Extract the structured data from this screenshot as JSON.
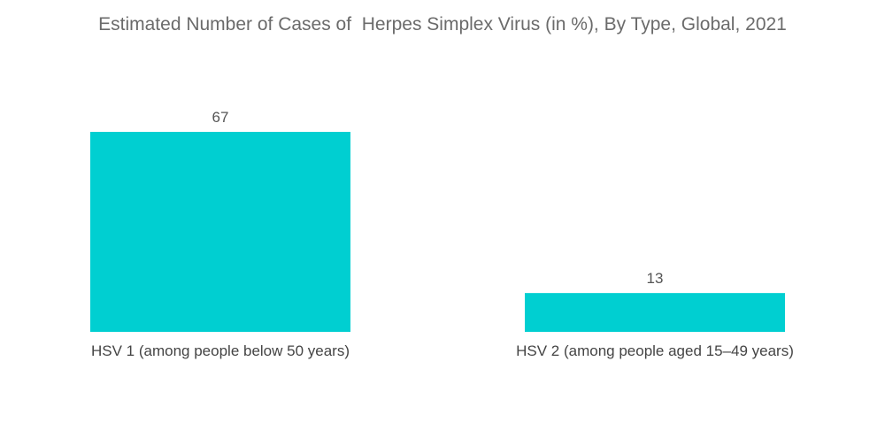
{
  "chart_data": {
    "type": "bar",
    "title": "Estimated Number of Cases of  Herpes Simplex Virus (in %), By Type, Global, 2021",
    "categories": [
      "HSV 1 (among people below 50 years)",
      "HSV 2 (among people aged 15–49 years)"
    ],
    "values": [
      67,
      13
    ],
    "xlabel": "",
    "ylabel": "",
    "ylim": [
      0,
      67
    ],
    "grid": false,
    "data_labels": true,
    "bar_color": "#00cfd1"
  }
}
